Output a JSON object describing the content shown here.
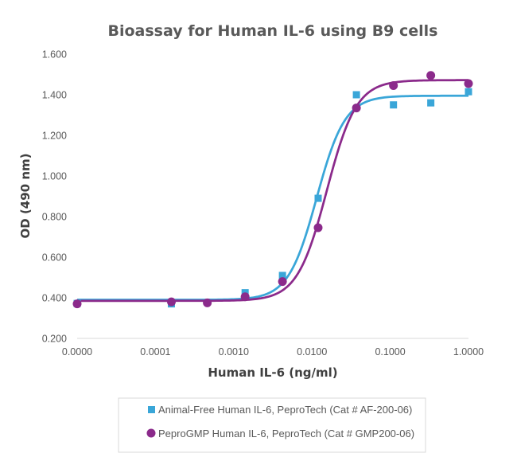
{
  "chart_data": {
    "type": "scatter",
    "title": "Bioassay for Human IL-6 using B9 cells",
    "xlabel": "Human IL-6 (ng/ml)",
    "ylabel": "OD (490 nm)",
    "xscale": "log",
    "xlim": [
      1e-05,
      1.0
    ],
    "ylim": [
      0.2,
      1.6
    ],
    "x_ticks": [
      1e-05,
      0.0001,
      0.001,
      0.01,
      0.1,
      1.0
    ],
    "x_tick_labels": [
      "0.0000",
      "0.0001",
      "0.0010",
      "0.0100",
      "0.1000",
      "1.0000"
    ],
    "y_ticks": [
      0.2,
      0.4,
      0.6,
      0.8,
      1.0,
      1.2,
      1.4,
      1.6
    ],
    "y_tick_labels": [
      "0.200",
      "0.400",
      "0.600",
      "0.800",
      "1.000",
      "1.200",
      "1.400",
      "1.600"
    ],
    "grid": false,
    "legend_position": "bottom",
    "series": [
      {
        "name": "Animal-Free Human IL-6, PeproTech (Cat # AF-200-06)",
        "color": "#3aa6d8",
        "marker": "square",
        "x": [
          1e-05,
          0.00016,
          0.0014,
          0.0042,
          0.012,
          0.037,
          0.11,
          0.33,
          1.0
        ],
        "y": [
          0.372,
          0.37,
          0.425,
          0.51,
          0.89,
          1.4,
          1.35,
          1.36,
          1.415
        ],
        "fit": {
          "bottom": 0.39,
          "top": 1.395,
          "ec50": 0.0115,
          "hill": 2.4
        }
      },
      {
        "name": "PeproGMP Human IL-6, PeproTech (Cat # GMP200-06)",
        "color": "#8b2a8b",
        "marker": "circle",
        "x": [
          1e-05,
          0.00016,
          0.00046,
          0.0014,
          0.0042,
          0.012,
          0.037,
          0.11,
          0.33,
          1.0
        ],
        "y": [
          0.37,
          0.38,
          0.375,
          0.405,
          0.48,
          0.745,
          1.335,
          1.445,
          1.495,
          1.455
        ],
        "fit": {
          "bottom": 0.385,
          "top": 1.472,
          "ec50": 0.0155,
          "hill": 2.3
        }
      }
    ]
  }
}
